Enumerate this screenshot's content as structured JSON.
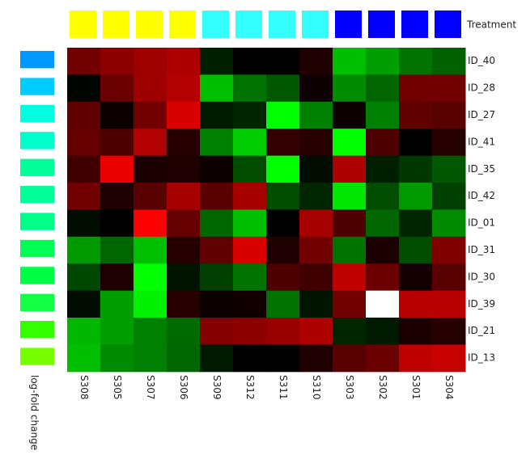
{
  "chart_data": {
    "type": "heatmap",
    "columns": [
      "S308",
      "S305",
      "S307",
      "S306",
      "S309",
      "S312",
      "S311",
      "S310",
      "S303",
      "S302",
      "S301",
      "S304"
    ],
    "rows": [
      "ID_40",
      "ID_28",
      "ID_27",
      "ID_41",
      "ID_35",
      "ID_42",
      "ID_01",
      "ID_31",
      "ID_30",
      "ID_39",
      "ID_21",
      "ID_13"
    ],
    "column_color_label": "Treatment",
    "column_colors": [
      "#ffff00",
      "#ffff00",
      "#ffff00",
      "#ffff00",
      "#33ffff",
      "#33ffff",
      "#33ffff",
      "#33ffff",
      "#0000ff",
      "#0000ff",
      "#0000ff",
      "#0000ff"
    ],
    "row_color_label": "log-fold change",
    "row_colors": [
      "#0099ff",
      "#00ccff",
      "#00ffe0",
      "#00ffcc",
      "#00ff99",
      "#00ff99",
      "#00ff88",
      "#00ff55",
      "#00ff44",
      "#11ff44",
      "#33ff00",
      "#77ff00"
    ],
    "colormap": {
      "negative": "#00ff00",
      "zero": "#000000",
      "positive": "#ff0000"
    },
    "colorlim": [
      -1,
      1
    ],
    "missing_color": "#ffffff",
    "values": [
      [
        0.45,
        0.55,
        0.62,
        0.68,
        -0.12,
        0,
        0,
        0.12,
        -0.75,
        -0.62,
        -0.45,
        -0.38
      ],
      [
        -0.02,
        0.42,
        0.62,
        0.7,
        -0.75,
        -0.45,
        -0.35,
        0.05,
        -0.55,
        -0.4,
        0.45,
        0.45
      ],
      [
        0.38,
        0.05,
        0.45,
        0.85,
        -0.1,
        -0.15,
        -1,
        -0.5,
        0.05,
        -0.5,
        0.38,
        0.35
      ],
      [
        0.4,
        0.3,
        0.7,
        0.15,
        -0.5,
        -0.8,
        0.2,
        0.15,
        -1,
        0.3,
        0,
        0.15
      ],
      [
        0.25,
        0.92,
        0.1,
        0.12,
        0.05,
        -0.3,
        -1,
        -0.05,
        0.68,
        -0.12,
        -0.22,
        -0.35
      ],
      [
        0.45,
        0.12,
        0.35,
        0.65,
        0.35,
        0.65,
        -0.3,
        -0.15,
        -0.9,
        -0.3,
        -0.6,
        -0.25
      ],
      [
        -0.05,
        0,
        1,
        0.4,
        -0.4,
        -0.75,
        0,
        0.65,
        0.3,
        -0.4,
        -0.15,
        -0.55
      ],
      [
        -0.6,
        -0.4,
        -0.75,
        0.15,
        0.38,
        0.85,
        0.12,
        0.45,
        -0.45,
        0.1,
        -0.3,
        0.5
      ],
      [
        -0.28,
        0.12,
        -1,
        -0.08,
        -0.25,
        -0.45,
        0.3,
        0.25,
        0.75,
        0.42,
        0.08,
        0.35
      ],
      [
        -0.05,
        -0.62,
        -0.95,
        0.15,
        0.05,
        0.07,
        -0.45,
        -0.08,
        0.45,
        null,
        0.72,
        0.72
      ],
      [
        -0.72,
        -0.62,
        -0.5,
        -0.42,
        0.52,
        0.55,
        0.6,
        0.68,
        -0.15,
        -0.1,
        0.1,
        0.15
      ],
      [
        -0.75,
        -0.55,
        -0.5,
        -0.4,
        -0.1,
        0,
        0,
        0.12,
        0.35,
        0.42,
        0.75,
        0.78
      ]
    ]
  }
}
